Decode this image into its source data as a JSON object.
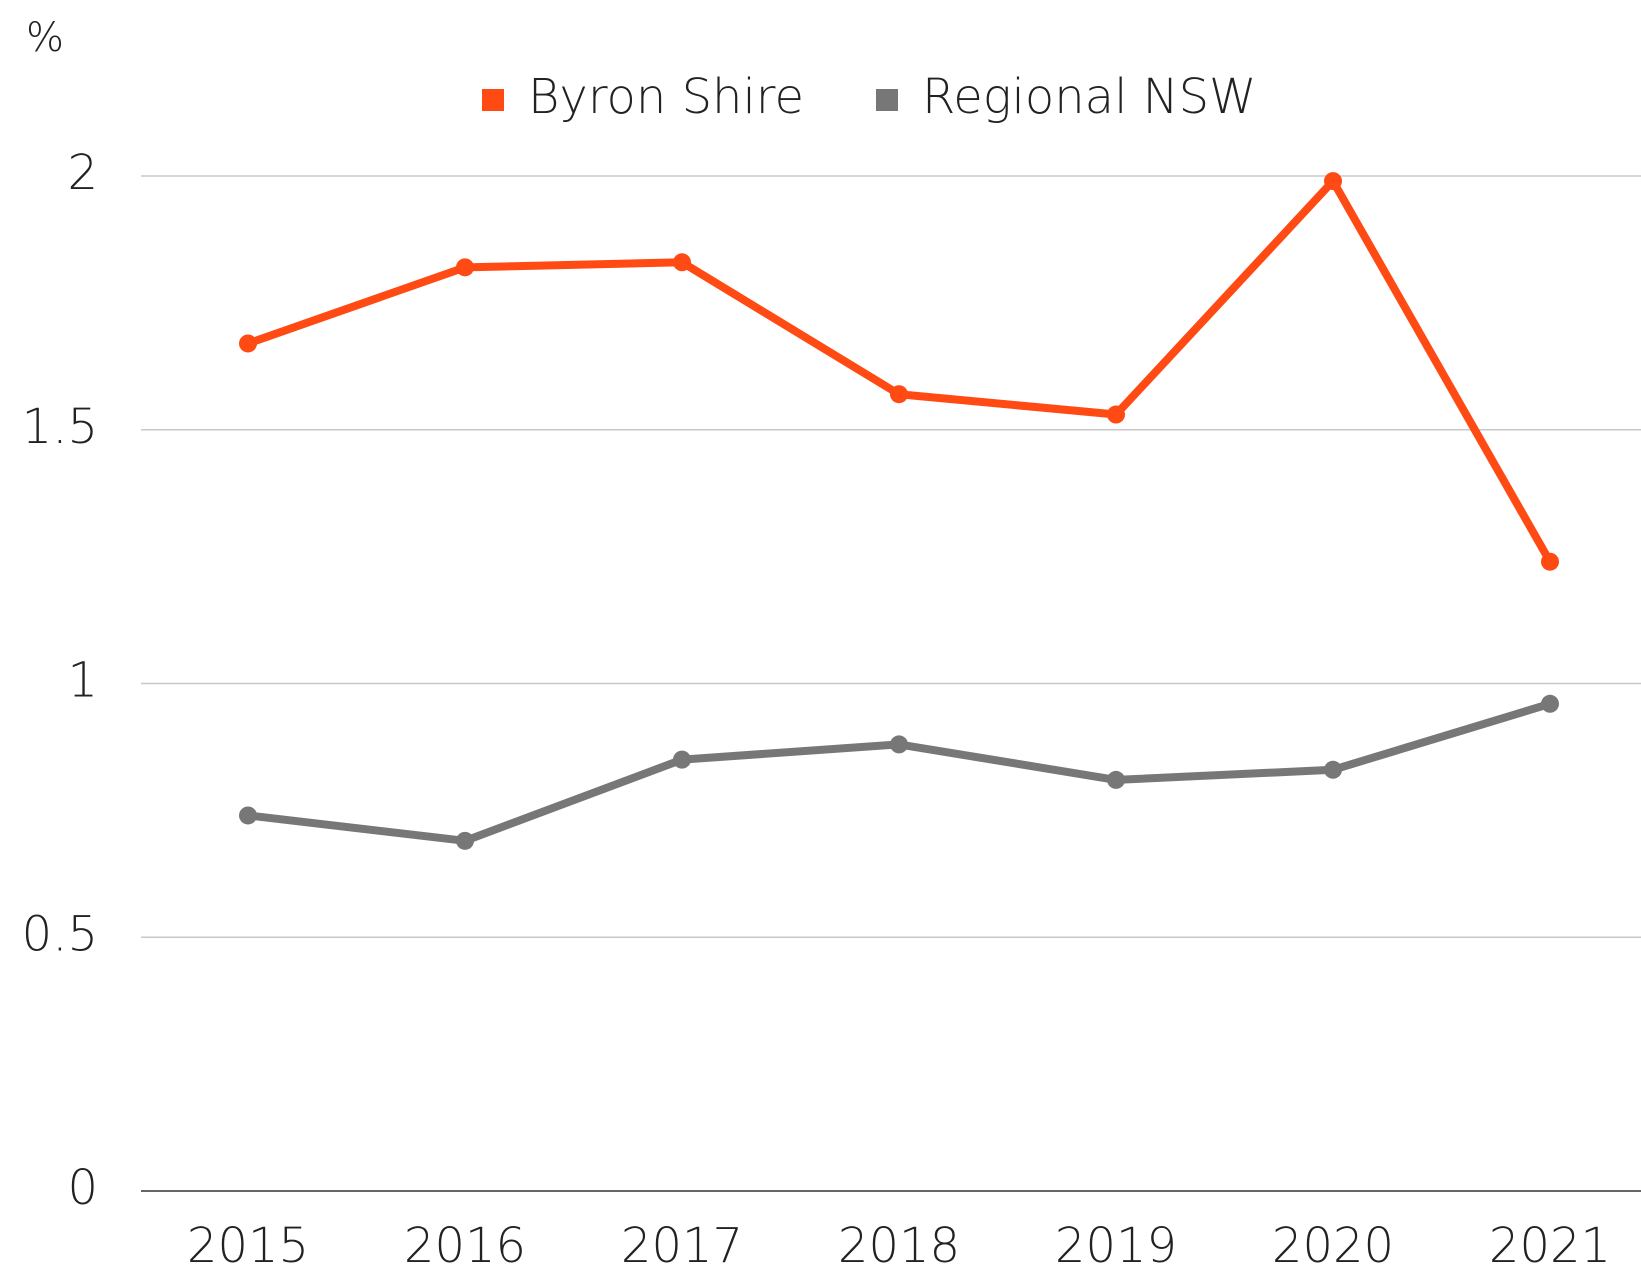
{
  "chart_data": {
    "type": "line",
    "y_label": "%",
    "categories": [
      "2015",
      "2016",
      "2017",
      "2018",
      "2019",
      "2020",
      "2021"
    ],
    "series": [
      {
        "name": "Byron Shire",
        "color": "#ff4a14",
        "values": [
          1.67,
          1.82,
          1.83,
          1.57,
          1.53,
          1.99,
          1.24
        ]
      },
      {
        "name": "Regional NSW",
        "color": "#777777",
        "values": [
          0.74,
          0.69,
          0.85,
          0.88,
          0.81,
          0.83,
          0.96
        ]
      }
    ],
    "ylim": [
      0,
      2
    ],
    "yticks": [
      0,
      0.5,
      1,
      1.5,
      2
    ],
    "grid": true,
    "legend": "top"
  }
}
